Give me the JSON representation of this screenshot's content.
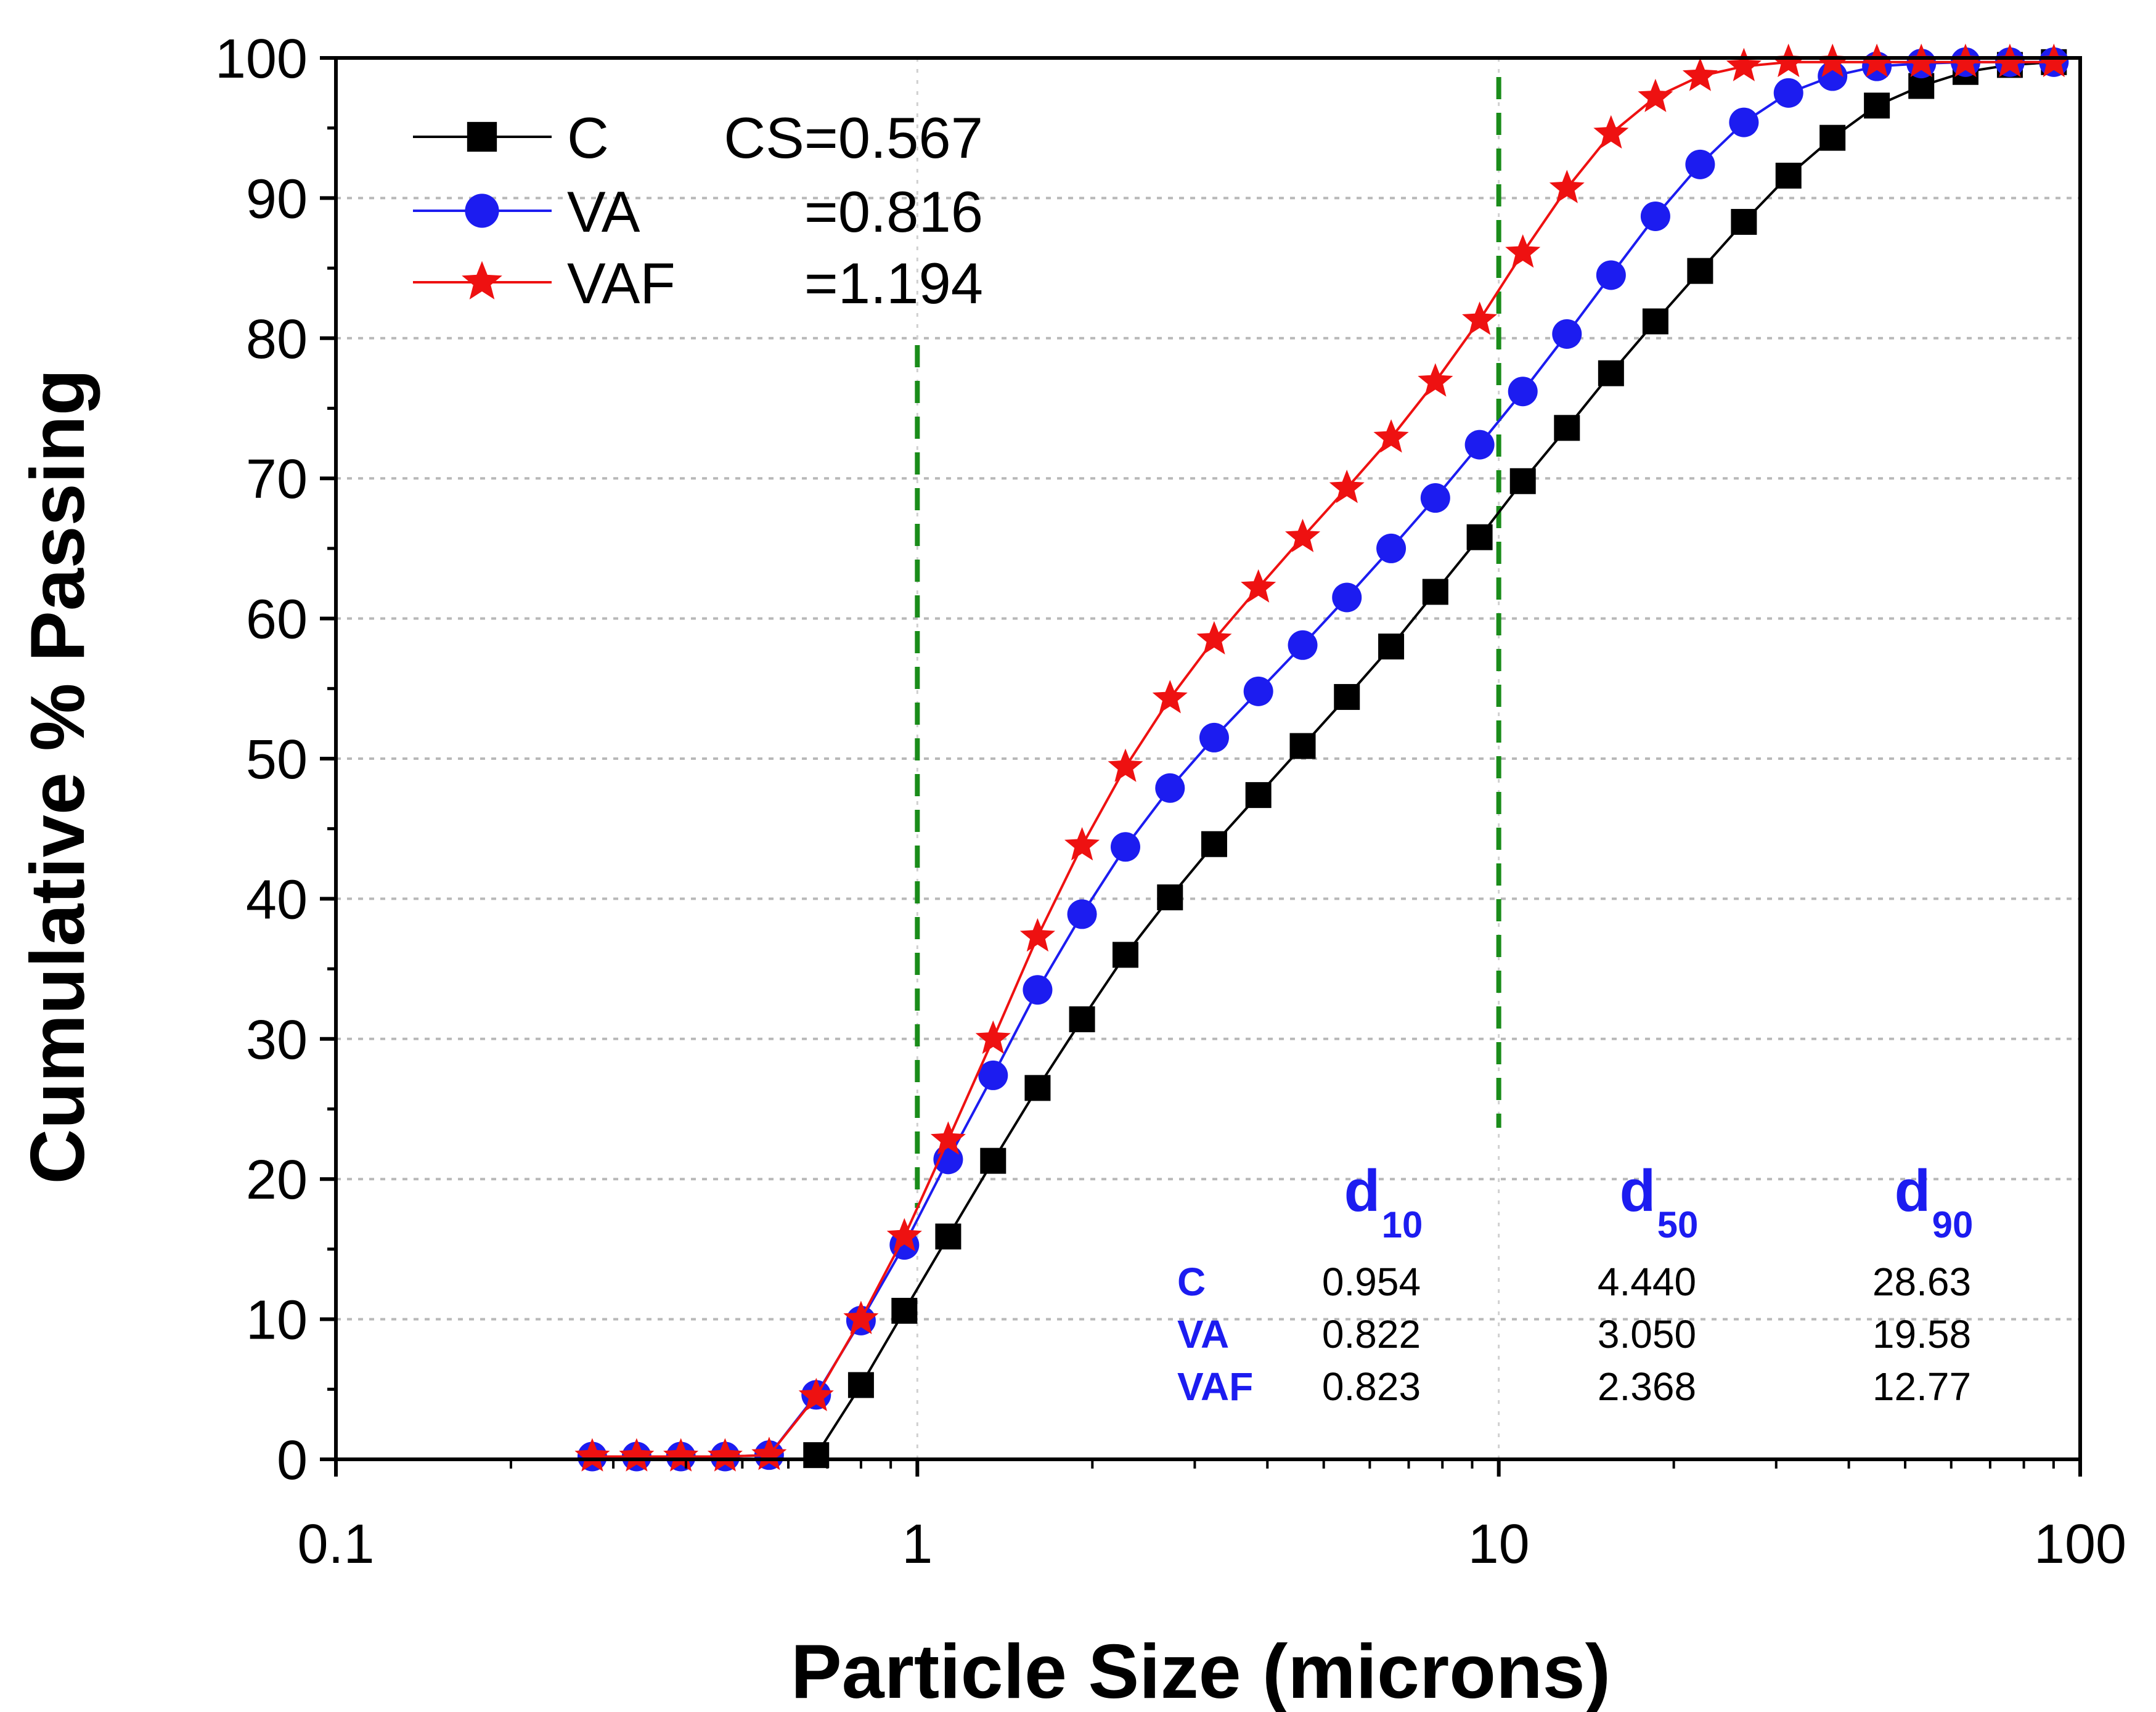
{
  "chart_data": {
    "type": "line",
    "x_scale": "log",
    "xlabel": "Particle Size (microns)",
    "ylabel": "Cumulative % Passing",
    "xlim": [
      0.1,
      100
    ],
    "ylim": [
      0,
      100
    ],
    "x_ticks": [
      "0.1",
      "1",
      "10",
      "100"
    ],
    "y_ticks": [
      "0",
      "10",
      "20",
      "30",
      "40",
      "50",
      "60",
      "70",
      "80",
      "90",
      "100"
    ],
    "reference_lines_x": [
      1,
      10
    ],
    "reference_line_color": "#1a8c1a",
    "series": [
      {
        "name": "C",
        "legend_label": "C",
        "legend_value": "CS=0.567",
        "color": "#000000",
        "marker": "square",
        "points": [
          [
            0.67,
            0.3
          ],
          [
            0.8,
            5.3
          ],
          [
            0.95,
            10.6
          ],
          [
            1.13,
            15.9
          ],
          [
            1.35,
            21.3
          ],
          [
            1.61,
            26.5
          ],
          [
            1.92,
            31.4
          ],
          [
            2.28,
            36.0
          ],
          [
            2.72,
            40.1
          ],
          [
            3.24,
            43.9
          ],
          [
            3.86,
            47.4
          ],
          [
            4.6,
            50.9
          ],
          [
            5.48,
            54.4
          ],
          [
            6.53,
            58.0
          ],
          [
            7.78,
            61.9
          ],
          [
            9.27,
            65.8
          ],
          [
            11.0,
            69.8
          ],
          [
            13.1,
            73.6
          ],
          [
            15.6,
            77.5
          ],
          [
            18.6,
            81.2
          ],
          [
            22.2,
            84.8
          ],
          [
            26.4,
            88.3
          ],
          [
            31.5,
            91.6
          ],
          [
            37.5,
            94.3
          ],
          [
            44.7,
            96.6
          ],
          [
            53.3,
            98.0
          ],
          [
            63.5,
            99.0
          ],
          [
            75.7,
            99.5
          ],
          [
            90.1,
            99.7
          ]
        ]
      },
      {
        "name": "VA",
        "legend_label": "VA",
        "legend_value": "=0.816",
        "color": "#1c1cf0",
        "marker": "circle",
        "points": [
          [
            0.276,
            0.2
          ],
          [
            0.329,
            0.2
          ],
          [
            0.392,
            0.2
          ],
          [
            0.467,
            0.2
          ],
          [
            0.556,
            0.3
          ],
          [
            0.67,
            4.6
          ],
          [
            0.8,
            9.9
          ],
          [
            0.95,
            15.3
          ],
          [
            1.13,
            21.4
          ],
          [
            1.35,
            27.4
          ],
          [
            1.61,
            33.5
          ],
          [
            1.92,
            38.9
          ],
          [
            2.28,
            43.7
          ],
          [
            2.72,
            47.9
          ],
          [
            3.24,
            51.5
          ],
          [
            3.86,
            54.8
          ],
          [
            4.6,
            58.1
          ],
          [
            5.48,
            61.5
          ],
          [
            6.53,
            65.0
          ],
          [
            7.78,
            68.6
          ],
          [
            9.27,
            72.4
          ],
          [
            11.0,
            76.2
          ],
          [
            13.1,
            80.3
          ],
          [
            15.6,
            84.5
          ],
          [
            18.6,
            88.7
          ],
          [
            22.2,
            92.4
          ],
          [
            26.4,
            95.4
          ],
          [
            31.5,
            97.5
          ],
          [
            37.5,
            98.7
          ],
          [
            44.7,
            99.4
          ],
          [
            53.3,
            99.6
          ],
          [
            63.5,
            99.7
          ],
          [
            75.7,
            99.7
          ],
          [
            90.1,
            99.7
          ]
        ]
      },
      {
        "name": "VAF",
        "legend_label": "VAF",
        "legend_value": "=1.194",
        "color": "#ee1111",
        "marker": "star",
        "points": [
          [
            0.276,
            0.2
          ],
          [
            0.329,
            0.2
          ],
          [
            0.392,
            0.2
          ],
          [
            0.467,
            0.2
          ],
          [
            0.556,
            0.3
          ],
          [
            0.67,
            4.5
          ],
          [
            0.8,
            10.0
          ],
          [
            0.95,
            15.9
          ],
          [
            1.13,
            22.8
          ],
          [
            1.35,
            30.0
          ],
          [
            1.61,
            37.3
          ],
          [
            1.92,
            43.8
          ],
          [
            2.28,
            49.4
          ],
          [
            2.72,
            54.3
          ],
          [
            3.24,
            58.5
          ],
          [
            3.86,
            62.2
          ],
          [
            4.6,
            65.8
          ],
          [
            5.48,
            69.3
          ],
          [
            6.53,
            72.9
          ],
          [
            7.78,
            76.9
          ],
          [
            9.27,
            81.3
          ],
          [
            11.0,
            86.1
          ],
          [
            13.1,
            90.7
          ],
          [
            15.6,
            94.6
          ],
          [
            18.6,
            97.2
          ],
          [
            22.2,
            98.7
          ],
          [
            26.4,
            99.4
          ],
          [
            31.5,
            99.7
          ],
          [
            37.5,
            99.7
          ],
          [
            44.7,
            99.7
          ],
          [
            53.3,
            99.7
          ],
          [
            63.5,
            99.7
          ],
          [
            75.7,
            99.7
          ],
          [
            90.1,
            99.7
          ]
        ]
      }
    ],
    "table": {
      "headers": [
        {
          "base": "d",
          "sub": "10"
        },
        {
          "base": "d",
          "sub": "50"
        },
        {
          "base": "d",
          "sub": "90"
        }
      ],
      "rows": [
        {
          "label": "C",
          "values": [
            "0.954",
            "4.440",
            "28.63"
          ]
        },
        {
          "label": "VA",
          "values": [
            "0.822",
            "3.050",
            "19.58"
          ]
        },
        {
          "label": "VAF",
          "values": [
            "0.823",
            "2.368",
            "12.77"
          ]
        }
      ]
    }
  }
}
